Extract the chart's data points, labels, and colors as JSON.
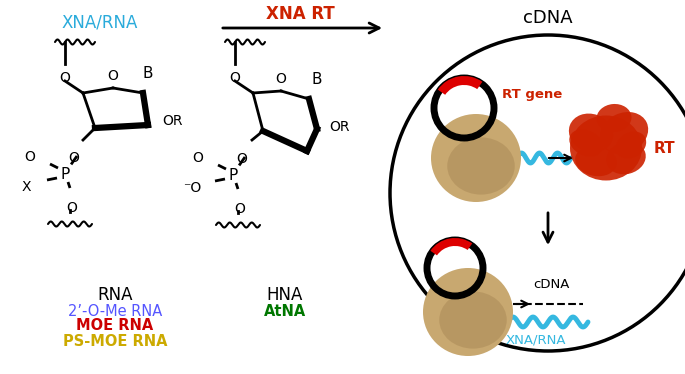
{
  "title_left": "XNA/RNA",
  "title_arrow": "XNA RT",
  "title_right": "cDNA",
  "label_rna": "RNA",
  "label_hna": "HNA",
  "label_2ome": "2’-O-Me RNA",
  "label_moe": "MOE RNA",
  "label_psmoe": "PS-MOE RNA",
  "label_atna": "AtNA",
  "label_rt": "RT",
  "label_rt_gene": "RT gene",
  "label_cdna": "cDNA",
  "label_xna_rna_bottom": "XNA/RNA",
  "color_xna": "#2AABDB",
  "color_arrow_top": "#CC2200",
  "color_2ome": "#5555FF",
  "color_moe": "#CC0000",
  "color_psmoe": "#CCAA00",
  "color_atna": "#007700",
  "color_rt": "#CC2200",
  "color_rt_gene": "#CC2200",
  "color_black": "#000000",
  "color_white": "#FFFFFF",
  "color_bead": "#C8A870",
  "color_bead_dark": "#9A7848",
  "color_circle_red": "#DD0000",
  "color_cyan": "#35B8E0",
  "bg_color": "#FFFFFF"
}
